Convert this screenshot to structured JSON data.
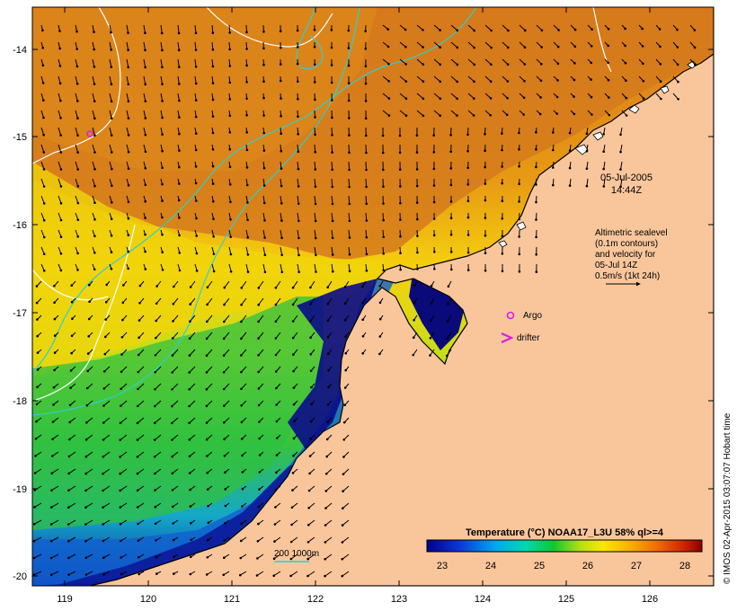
{
  "map": {
    "y_ticks": [
      "-14",
      "-15",
      "-16",
      "-17",
      "-18",
      "-19",
      "-20"
    ],
    "x_ticks": [
      "119",
      "120",
      "121",
      "122",
      "123",
      "124",
      "125",
      "126"
    ]
  },
  "annotations": {
    "date": "05-Jul-2005",
    "time": "14:44Z",
    "altimetry_lines": [
      "Altimetric sealevel",
      "(0.1m contours)",
      "and velocity for",
      "05-Jul 14Z",
      "0.5m/s (1kt 24h)"
    ],
    "argo_label": "Argo",
    "drifter_label": "drifter",
    "bathy_label": "200  1000m"
  },
  "colorbar": {
    "title": "Temperature (°C) NOAA17_L3U 58% ql>=4",
    "ticks": [
      "23",
      "24",
      "25",
      "26",
      "27",
      "28"
    ]
  },
  "copyright": "© IMOS 02-Apr-2015 03:07:07 Hobart time",
  "colors": {
    "land": "#f9c69c",
    "sst_cold": "#08086e",
    "sst_warm": "#d86e08",
    "contour": "#ffffff",
    "bathymetry": "#2ecfcf",
    "marker": "#d81fe0"
  }
}
